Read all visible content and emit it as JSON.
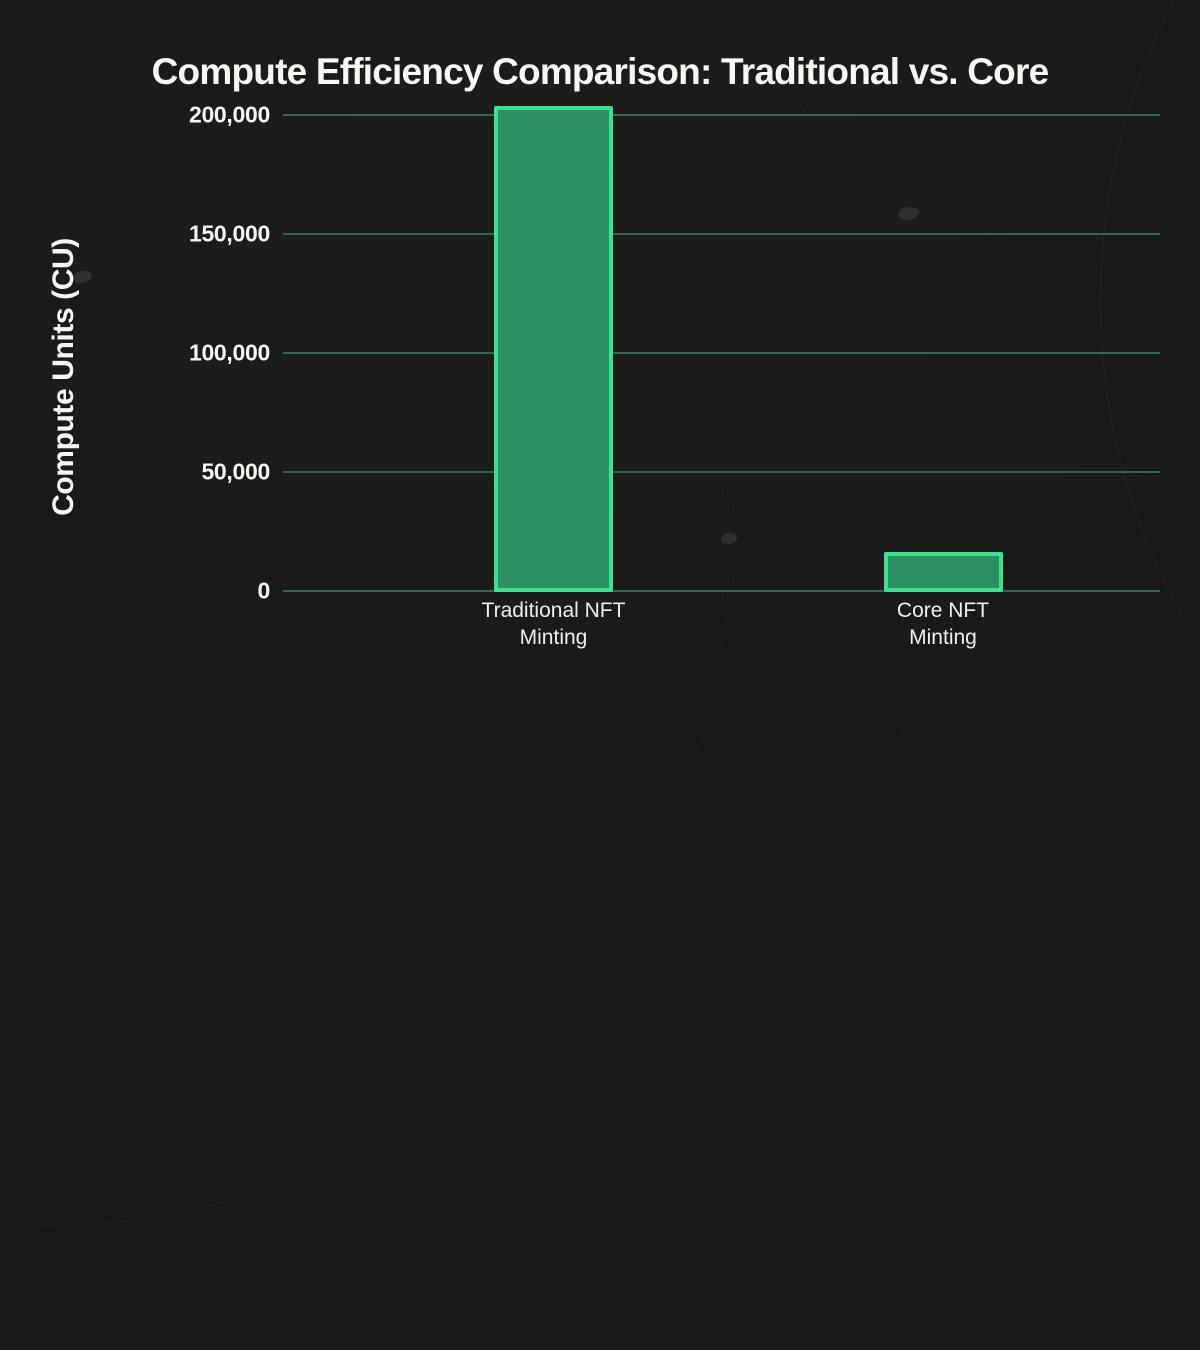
{
  "page": {
    "background": "#1a1a18"
  },
  "title": "Compute Efficiency Comparison: Traditional vs. Core",
  "chart_data": {
    "type": "bar",
    "title": "Compute Efficiency Comparison: Traditional vs. Core",
    "xlabel": "",
    "ylabel": "Compute Units (CU)",
    "categories": [
      "Traditional NFT Minting",
      "Core NFT Minting"
    ],
    "category_label_lines": [
      [
        "Traditional NFT",
        "Minting"
      ],
      [
        "Core NFT",
        "Minting"
      ]
    ],
    "values": [
      204000,
      17000
    ],
    "unit": "CU",
    "ylim": [
      0,
      200000
    ],
    "yticks": [
      0,
      50000,
      100000,
      150000,
      200000
    ],
    "ytick_labels": [
      "0",
      "50,000",
      "100,000",
      "150,000",
      "200,000"
    ],
    "grid": "horizontal",
    "legend": "none",
    "colors": {
      "bar_fill": "#2e9163",
      "bar_border": "#3fe08d",
      "gridline": "#2b6950",
      "text": "#f5f5f1",
      "background": "#1a1a18"
    }
  }
}
